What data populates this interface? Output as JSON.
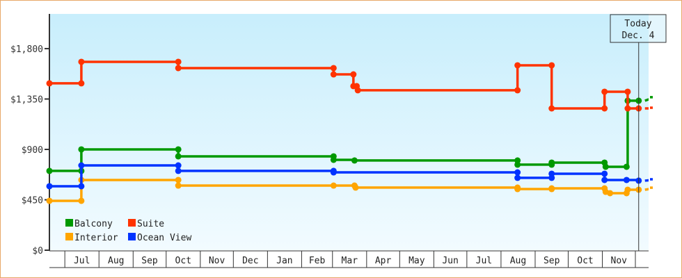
{
  "chart_data": {
    "type": "line",
    "step": true,
    "title": "",
    "xlabel": "",
    "ylabel": "",
    "ylim": [
      0,
      2110
    ],
    "xlim": [
      "Jun 17",
      "Dec 13"
    ],
    "y_ticks": [
      {
        "value": 0,
        "label": "$0"
      },
      {
        "value": 450,
        "label": "$450"
      },
      {
        "value": 900,
        "label": "$900"
      },
      {
        "value": 1350,
        "label": "$1,350"
      },
      {
        "value": 1800,
        "label": "$1,800"
      }
    ],
    "x_months": [
      "",
      "Jul",
      "Aug",
      "Sep",
      "Oct",
      "Nov",
      "Dec",
      "Jan",
      "Feb",
      "Mar",
      "Apr",
      "May",
      "Jun",
      "Jul",
      "Aug",
      "Sep",
      "Oct",
      "Nov",
      ""
    ],
    "grid": false,
    "legend_position": "bottom-left",
    "today_marker": {
      "line1": "Today",
      "line2": "Dec. 4",
      "date": "Dec 4"
    },
    "series": [
      {
        "name": "Balcony",
        "color": "#009900",
        "points": [
          [
            "Jun 17",
            708
          ],
          [
            "Jul 16",
            708
          ],
          [
            "Jul 16",
            900
          ],
          [
            "Oct 12",
            900
          ],
          [
            "Oct 12",
            838
          ],
          [
            "Mar 2",
            838
          ],
          [
            "Mar 2",
            807
          ],
          [
            "Mar 21",
            801
          ],
          [
            "Aug 16",
            801
          ],
          [
            "Aug 16",
            764
          ],
          [
            "Sep 16",
            764
          ],
          [
            "Sep 16",
            782
          ],
          [
            "Nov 3",
            782
          ],
          [
            "Nov 4",
            745
          ],
          [
            "Nov 23",
            745
          ],
          [
            "Nov 24",
            1335
          ],
          [
            "Dec 4",
            1335
          ]
        ],
        "projected": 1360
      },
      {
        "name": "Suite",
        "color": "#ff3300",
        "points": [
          [
            "Jun 17",
            1490
          ],
          [
            "Jul 16",
            1490
          ],
          [
            "Jul 16",
            1682
          ],
          [
            "Oct 12",
            1682
          ],
          [
            "Oct 12",
            1626
          ],
          [
            "Mar 2",
            1626
          ],
          [
            "Mar 2",
            1570
          ],
          [
            "Mar 20",
            1570
          ],
          [
            "Mar 20",
            1465
          ],
          [
            "Mar 23",
            1465
          ],
          [
            "Mar 24",
            1428
          ],
          [
            "Aug 16",
            1428
          ],
          [
            "Aug 16",
            1651
          ],
          [
            "Sep 16",
            1651
          ],
          [
            "Sep 16",
            1266
          ],
          [
            "Nov 3",
            1266
          ],
          [
            "Nov 3",
            1415
          ],
          [
            "Nov 24",
            1415
          ],
          [
            "Nov 24",
            1266
          ],
          [
            "Dec 4",
            1266
          ]
        ],
        "projected": 1266
      },
      {
        "name": "Interior",
        "color": "#ffa500",
        "points": [
          [
            "Jun 17",
            441
          ],
          [
            "Jul 16",
            441
          ],
          [
            "Jul 16",
            627
          ],
          [
            "Oct 12",
            627
          ],
          [
            "Oct 12",
            577
          ],
          [
            "Mar 2",
            577
          ],
          [
            "Mar 21",
            577
          ],
          [
            "Mar 22",
            559
          ],
          [
            "Aug 16",
            559
          ],
          [
            "Aug 16",
            546
          ],
          [
            "Sep 16",
            546
          ],
          [
            "Sep 16",
            552
          ],
          [
            "Nov 3",
            552
          ],
          [
            "Nov 4",
            521
          ],
          [
            "Nov 8",
            509
          ],
          [
            "Nov 23",
            509
          ],
          [
            "Nov 24",
            540
          ],
          [
            "Dec 4",
            540
          ]
        ],
        "projected": 552
      },
      {
        "name": "Ocean View",
        "color": "#0033ff",
        "points": [
          [
            "Jun 17",
            571
          ],
          [
            "Jul 16",
            571
          ],
          [
            "Jul 16",
            757
          ],
          [
            "Oct 12",
            757
          ],
          [
            "Oct 12",
            708
          ],
          [
            "Mar 2",
            708
          ],
          [
            "Mar 2",
            695
          ],
          [
            "Aug 16",
            695
          ],
          [
            "Aug 16",
            646
          ],
          [
            "Sep 16",
            646
          ],
          [
            "Sep 16",
            683
          ],
          [
            "Nov 3",
            683
          ],
          [
            "Nov 3",
            627
          ],
          [
            "Nov 23",
            627
          ],
          [
            "Dec 4",
            621
          ]
        ],
        "projected": 627
      }
    ]
  }
}
